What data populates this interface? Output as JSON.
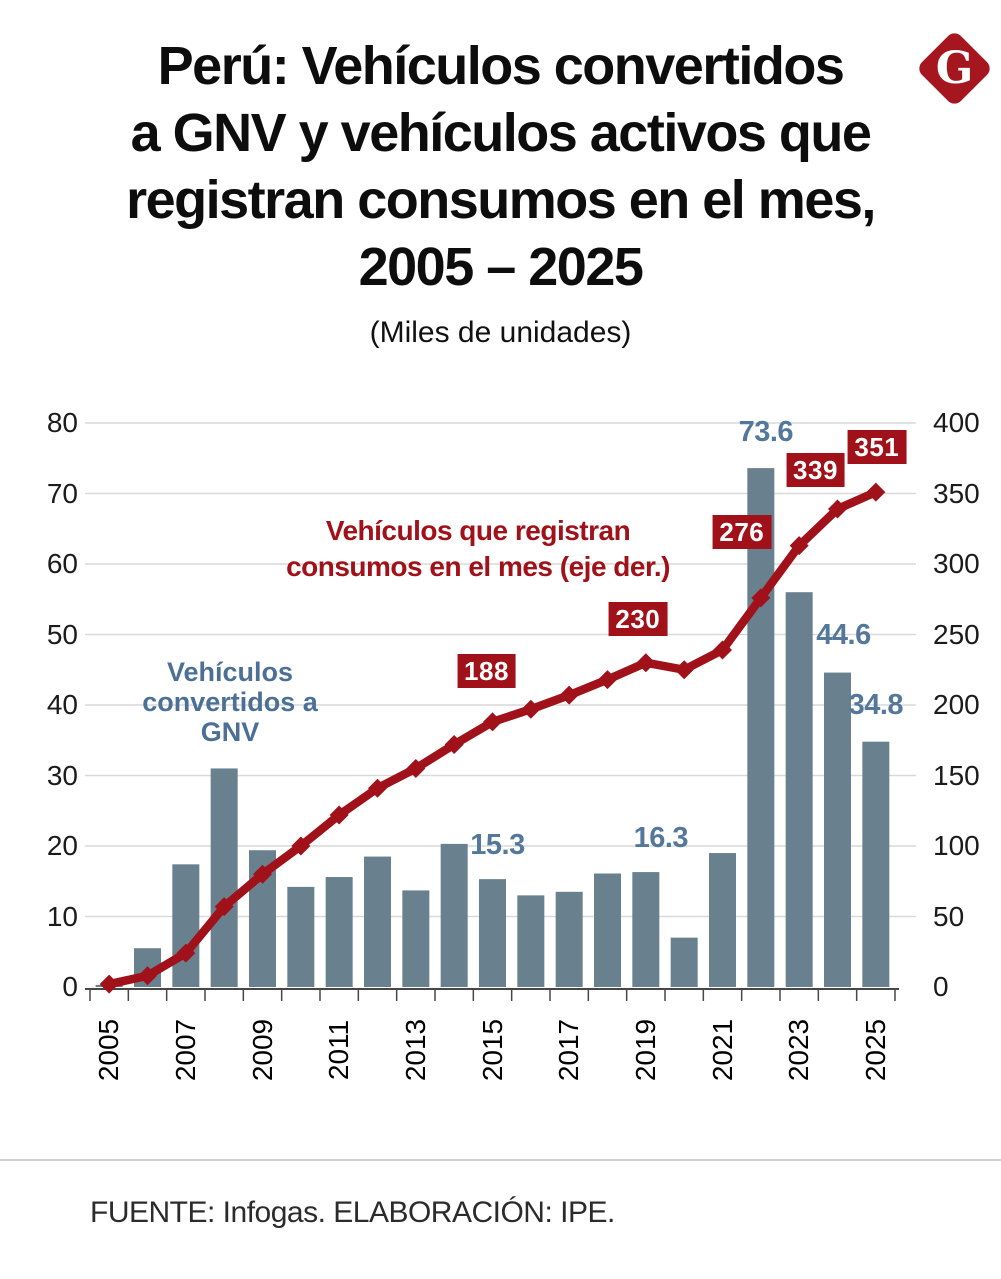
{
  "logo": {
    "letter": "G",
    "color": "#A5161F"
  },
  "header": {
    "title_lines": [
      "Perú: Vehículos convertidos",
      "a GNV y vehículos activos que",
      "registran consumos en el mes,",
      "2005 – 2025"
    ],
    "subtitle": "(Miles de unidades)"
  },
  "chart_data": {
    "type": "bar",
    "subtype": "combo bar + line, dual axis",
    "categories": [
      2005,
      2006,
      2007,
      2008,
      2009,
      2010,
      2011,
      2012,
      2013,
      2014,
      2015,
      2016,
      2017,
      2018,
      2019,
      2020,
      2021,
      2022,
      2023,
      2024,
      2025
    ],
    "series": [
      {
        "name": "Vehículos convertidos a GNV",
        "type": "bar",
        "axis": "left",
        "color": "#69808F",
        "values": [
          0.3,
          5.5,
          17.4,
          31.0,
          19.4,
          14.2,
          15.6,
          18.5,
          13.7,
          20.3,
          15.3,
          13.0,
          13.5,
          16.1,
          16.3,
          7.0,
          19.0,
          73.6,
          56.0,
          44.6,
          34.8
        ]
      },
      {
        "name": "Vehículos que registran consumos en el mes (eje der.)",
        "type": "line",
        "axis": "right",
        "color": "#A11119",
        "marker": "diamond",
        "values": [
          2,
          8,
          24,
          57,
          80,
          100,
          122,
          141,
          155,
          172,
          188,
          197,
          207,
          218,
          230,
          225,
          239,
          276,
          313,
          339,
          351
        ]
      }
    ],
    "left_axis": {
      "min": 0,
      "max": 80,
      "step": 10,
      "labels": [
        "0",
        "10",
        "20",
        "30",
        "40",
        "50",
        "60",
        "70",
        "80"
      ]
    },
    "right_axis": {
      "min": 0,
      "max": 400,
      "step": 50,
      "labels": [
        "0",
        "50",
        "100",
        "150",
        "200",
        "250",
        "300",
        "350",
        "400"
      ]
    },
    "x_axis": {
      "labels": [
        "2005",
        "2007",
        "2009",
        "2011",
        "2013",
        "2015",
        "2017",
        "2019",
        "2021",
        "2023",
        "2025"
      ],
      "label_every": 2
    },
    "grid": "horizontal",
    "bar_value_labels": [
      {
        "year": 2015,
        "text": "15.3"
      },
      {
        "year": 2019,
        "text": "16.3"
      },
      {
        "year": 2022,
        "text": "73.6"
      },
      {
        "year": 2024,
        "text": "44.6"
      },
      {
        "year": 2025,
        "text": "34.8"
      }
    ],
    "line_value_labels": [
      {
        "year": 2015,
        "text": "188"
      },
      {
        "year": 2019,
        "text": "230"
      },
      {
        "year": 2022,
        "text": "276"
      },
      {
        "year": 2024,
        "text": "339"
      },
      {
        "year": 2025,
        "text": "351"
      }
    ],
    "annotations": {
      "bar_label_lines": [
        "Vehículos",
        "convertidos a",
        "GNV"
      ],
      "line_label_lines": [
        "Vehículos que registran",
        "consumos en el mes (eje der.)"
      ]
    }
  },
  "footer": {
    "source": "FUENTE: Infogas. ELABORACIÓN: IPE."
  }
}
